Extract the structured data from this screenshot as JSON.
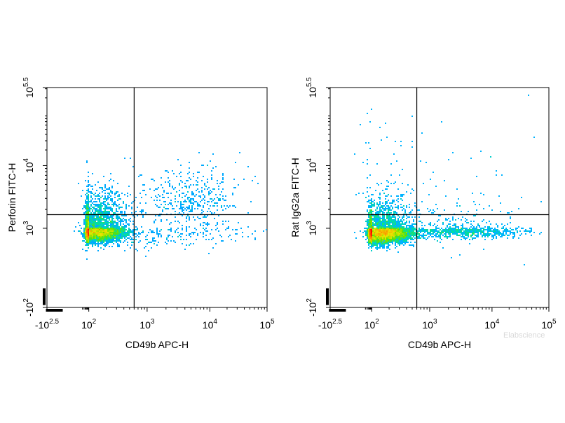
{
  "watermark": "Elabscience",
  "chart_data": [
    {
      "type": "scatter",
      "subtype": "flow-cytometry-density-dot-plot",
      "xlabel": "CD49b APC-H",
      "ylabel": "Perforin FITC-H",
      "x_scale": "biexponential",
      "y_scale": "biexponential",
      "xlim": [
        -316,
        100000
      ],
      "ylim": [
        -100,
        316228
      ],
      "x_ticks": [
        {
          "base": "-10",
          "exp": "2.5",
          "value": -316
        },
        {
          "base": "10",
          "exp": "2",
          "value": 100
        },
        {
          "base": "10",
          "exp": "3",
          "value": 1000
        },
        {
          "base": "10",
          "exp": "4",
          "value": 10000
        },
        {
          "base": "10",
          "exp": "5",
          "value": 100000
        }
      ],
      "y_ticks": [
        {
          "base": "-10",
          "exp": "2",
          "value": -100
        },
        {
          "base": "10",
          "exp": "3",
          "value": 1000
        },
        {
          "base": "10",
          "exp": "4",
          "value": 10000
        },
        {
          "base": "10",
          "exp": "5.5",
          "value": 316228
        }
      ],
      "gate": {
        "x": 600,
        "y": 1650
      },
      "populations": [
        {
          "x": 140,
          "y": 650,
          "count": 4200,
          "sx": 0.13,
          "sy": 0.17
        },
        {
          "x": 5200,
          "y": 2800,
          "count": 340,
          "sx": 0.17,
          "sy": 0.14
        },
        {
          "x": 1400,
          "y": 700,
          "count": 420,
          "sx": 0.5,
          "sy": 0.3
        }
      ],
      "color_scale": [
        "#0000ff",
        "#00b4ff",
        "#00e0a0",
        "#60e000",
        "#e8e800",
        "#ff8000",
        "#ff0000"
      ],
      "grid": false,
      "legend": "none"
    },
    {
      "type": "scatter",
      "subtype": "flow-cytometry-density-dot-plot",
      "xlabel": "CD49b APC-H",
      "ylabel": "Rat IgG2a FITC-H",
      "x_scale": "biexponential",
      "y_scale": "biexponential",
      "xlim": [
        -316,
        100000
      ],
      "ylim": [
        -100,
        316228
      ],
      "x_ticks": [
        {
          "base": "-10",
          "exp": "2.5",
          "value": -316
        },
        {
          "base": "10",
          "exp": "2",
          "value": 100
        },
        {
          "base": "10",
          "exp": "3",
          "value": 1000
        },
        {
          "base": "10",
          "exp": "4",
          "value": 10000
        },
        {
          "base": "10",
          "exp": "5",
          "value": 100000
        }
      ],
      "y_ticks": [
        {
          "base": "-10",
          "exp": "2",
          "value": -100
        },
        {
          "base": "10",
          "exp": "3",
          "value": 1000
        },
        {
          "base": "10",
          "exp": "4",
          "value": 10000
        },
        {
          "base": "10",
          "exp": "5.5",
          "value": 316228
        }
      ],
      "gate": {
        "x": 600,
        "y": 1650
      },
      "populations": [
        {
          "x": 150,
          "y": 520,
          "count": 4800,
          "sx": 0.13,
          "sy": 0.17
        },
        {
          "x": 3000,
          "y": 650,
          "count": 800,
          "sx": 0.28,
          "sy": 0.12
        },
        {
          "x": 600,
          "y": 2200,
          "count": 150,
          "sx": 0.6,
          "sy": 0.5
        }
      ],
      "color_scale": [
        "#0000ff",
        "#00b4ff",
        "#00e0a0",
        "#60e000",
        "#e8e800",
        "#ff8000",
        "#ff0000"
      ],
      "grid": false,
      "legend": "none"
    }
  ]
}
